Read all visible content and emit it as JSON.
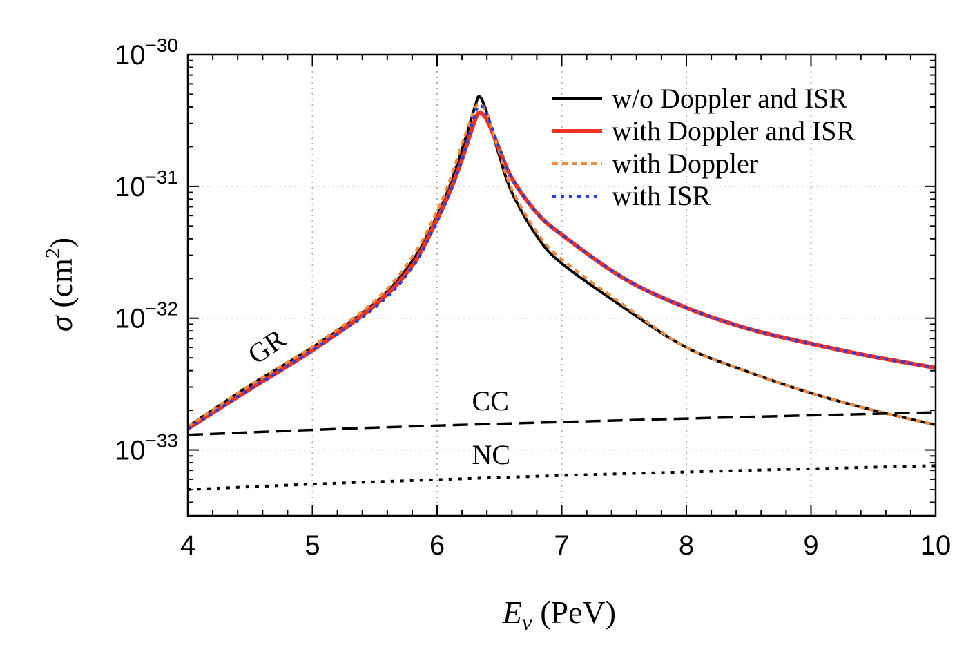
{
  "chart_data": {
    "type": "line",
    "xlabel": {
      "main": "E",
      "sub": "ν",
      "unit": "(PeV)"
    },
    "ylabel": {
      "main": "σ",
      "unit_open": "(cm",
      "unit_sup": "2",
      "unit_close": ")"
    },
    "xlim": [
      4,
      10
    ],
    "ylim_exponent": [
      -33.5,
      -30
    ],
    "y_scale": "log",
    "x_ticks": [
      "4",
      "5",
      "6",
      "7",
      "8",
      "9",
      "10"
    ],
    "y_ticks": [
      {
        "base": "10",
        "exp": "−30",
        "value_exp": -30
      },
      {
        "base": "10",
        "exp": "−31",
        "value_exp": -31
      },
      {
        "base": "10",
        "exp": "−32",
        "value_exp": -32
      },
      {
        "base": "10",
        "exp": "−33",
        "value_exp": -33
      }
    ],
    "grid": true,
    "legend_position": "top-right",
    "series": [
      {
        "name": "w/o Doppler and ISR",
        "color": "#000000",
        "style": "solid",
        "x": [
          4.0,
          4.5,
          5.0,
          5.5,
          5.8,
          6.0,
          6.1,
          6.2,
          6.3,
          6.34,
          6.4,
          6.5,
          6.6,
          6.8,
          7.0,
          7.5,
          8.0,
          8.5,
          9.0,
          9.5,
          10.0
        ],
        "y": [
          1.5e-33,
          3.1e-33,
          6e-33,
          1.3e-32,
          2.7e-32,
          6e-32,
          1e-31,
          1.9e-31,
          3.9e-31,
          4.8e-31,
          3.6e-31,
          1.7e-31,
          9e-32,
          4.2e-32,
          2.6e-32,
          1.2e-32,
          6e-33,
          3.9e-33,
          2.7e-33,
          2e-33,
          1.55e-33
        ]
      },
      {
        "name": "with Doppler and ISR",
        "color": "#ee3322",
        "style": "solid-thick",
        "x": [
          4.0,
          4.5,
          5.0,
          5.5,
          5.8,
          6.0,
          6.1,
          6.2,
          6.3,
          6.34,
          6.4,
          6.5,
          6.6,
          6.8,
          7.0,
          7.5,
          8.0,
          8.5,
          9.0,
          9.5,
          10.0
        ],
        "y": [
          1.45e-33,
          2.9e-33,
          5.7e-33,
          1.25e-32,
          2.5e-32,
          5.6e-32,
          9e-32,
          1.6e-31,
          3.1e-31,
          3.6e-31,
          3.2e-31,
          1.9e-31,
          1.15e-31,
          6.3e-32,
          4.3e-32,
          2e-32,
          1.2e-32,
          8.3e-33,
          6.4e-33,
          5.1e-33,
          4.2e-33
        ]
      },
      {
        "name": "with Doppler",
        "color": "#f08a3c",
        "style": "dashed",
        "x": [
          4.0,
          4.5,
          5.0,
          5.5,
          5.8,
          6.0,
          6.1,
          6.2,
          6.3,
          6.34,
          6.4,
          6.5,
          6.6,
          6.8,
          7.0,
          7.5,
          8.0,
          8.5,
          9.0,
          9.5,
          10.0
        ],
        "y": [
          1.5e-33,
          3.1e-33,
          6.1e-33,
          1.35e-32,
          2.9e-32,
          6.5e-32,
          1.1e-31,
          2.1e-31,
          3.8e-31,
          4.2e-31,
          3.6e-31,
          1.8e-31,
          9.5e-32,
          4.5e-32,
          2.8e-32,
          1.25e-32,
          6e-33,
          3.9e-33,
          2.7e-33,
          2e-33,
          1.55e-33
        ]
      },
      {
        "name": "with ISR",
        "color": "#1f3ff0",
        "style": "dotted",
        "x": [
          4.0,
          4.5,
          5.0,
          5.5,
          5.8,
          6.0,
          6.1,
          6.2,
          6.3,
          6.34,
          6.4,
          6.5,
          6.6,
          6.8,
          7.0,
          7.5,
          8.0,
          8.5,
          9.0,
          9.5,
          10.0
        ],
        "y": [
          1.45e-33,
          2.9e-33,
          5.7e-33,
          1.2e-32,
          2.4e-32,
          5.4e-32,
          8.8e-32,
          1.6e-31,
          3.4e-31,
          4.1e-31,
          3.5e-31,
          1.95e-31,
          1.15e-31,
          6.3e-32,
          4.3e-32,
          2e-32,
          1.2e-32,
          8.3e-33,
          6.4e-33,
          5.1e-33,
          4.2e-33
        ]
      },
      {
        "name": "",
        "color": "#000000",
        "style": "long-dashed",
        "x": [
          4.0,
          5.0,
          6.0,
          7.0,
          8.0,
          9.0,
          10.0
        ],
        "y": [
          1.3e-33,
          1.42e-33,
          1.53e-33,
          1.63e-33,
          1.73e-33,
          1.83e-33,
          1.93e-33
        ]
      },
      {
        "name": "",
        "color": "#000000",
        "style": "dotted-black",
        "x": [
          4.0,
          5.0,
          6.0,
          7.0,
          8.0,
          9.0,
          10.0
        ],
        "y": [
          5e-34,
          5.5e-34,
          5.95e-34,
          6.4e-34,
          6.8e-34,
          7.2e-34,
          7.6e-34
        ]
      }
    ],
    "annotations": [
      {
        "text": "GR",
        "x": 4.55,
        "y": 4.4e-33,
        "rotate": -35
      },
      {
        "text": "CC",
        "x": 6.28,
        "y": 2e-33,
        "rotate": 0
      },
      {
        "text": "NC",
        "x": 6.28,
        "y": 7.8e-34,
        "rotate": 0
      }
    ]
  }
}
